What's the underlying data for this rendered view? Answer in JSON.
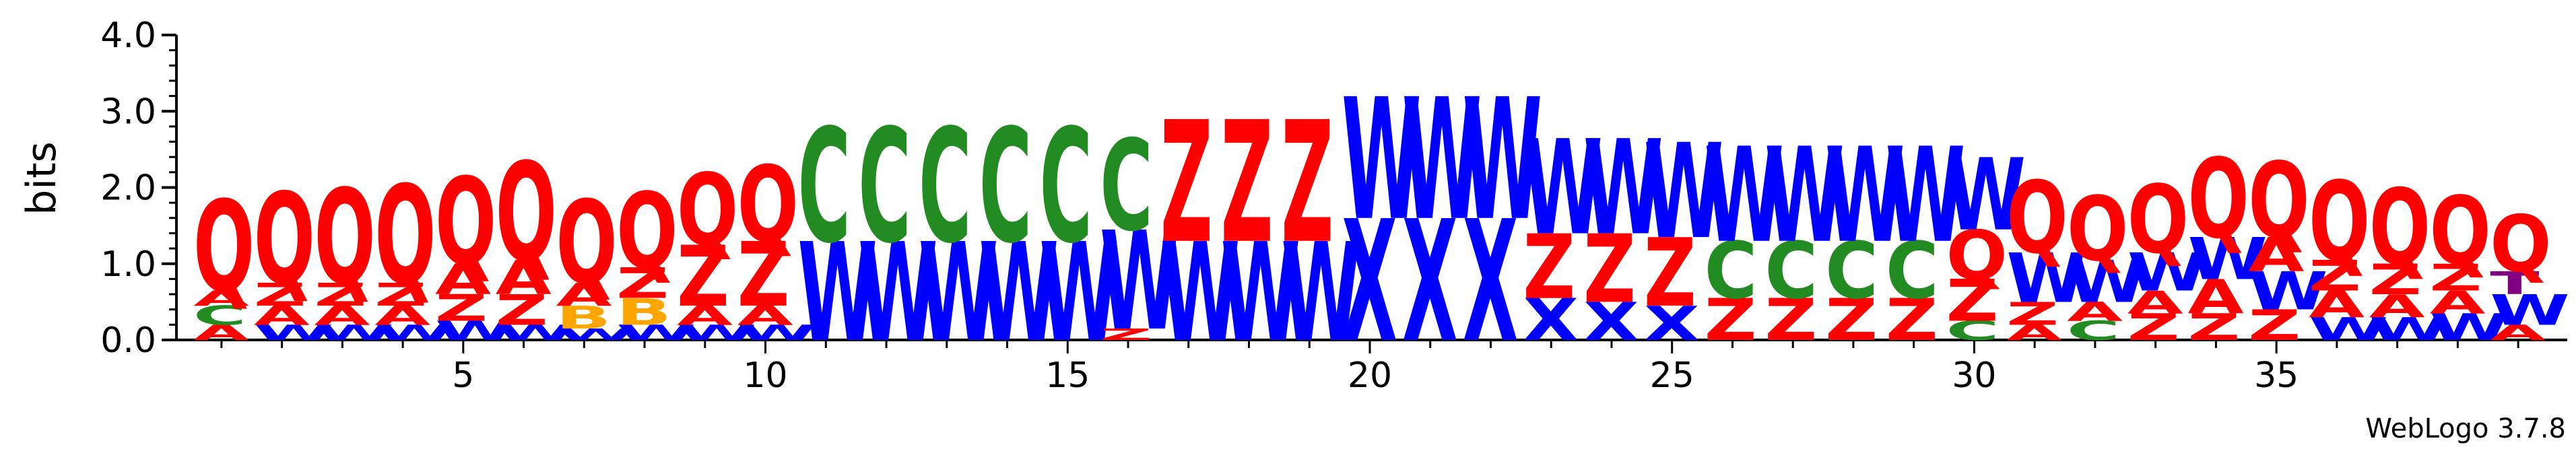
{
  "chart_data": {
    "type": "sequence-logo",
    "ylabel": "bits",
    "ylim": [
      0,
      4.0
    ],
    "yticks": [
      "0.0",
      "1.0",
      "2.0",
      "3.0",
      "4.0"
    ],
    "xticks": [
      5,
      10,
      15,
      20,
      25,
      30,
      35
    ],
    "footer": "WebLogo 3.7.8",
    "colors": {
      "Q": "#ff0000",
      "Z": "#ff0000",
      "A": "#ff0000",
      "C": "#228b22",
      "W": "#0000ff",
      "X": "#0000ff",
      "B": "#ffa500",
      "T": "#800080"
    },
    "positions": [
      {
        "pos": 1,
        "stack": [
          [
            "A",
            0.2
          ],
          [
            "C",
            0.25
          ],
          [
            "A",
            0.2
          ],
          [
            "Q",
            1.2
          ]
        ]
      },
      {
        "pos": 2,
        "stack": [
          [
            "W",
            0.2
          ],
          [
            "A",
            0.25
          ],
          [
            "Z",
            0.3
          ],
          [
            "Q",
            1.2
          ]
        ]
      },
      {
        "pos": 3,
        "stack": [
          [
            "W",
            0.2
          ],
          [
            "A",
            0.25
          ],
          [
            "Z",
            0.3
          ],
          [
            "Q",
            1.25
          ]
        ]
      },
      {
        "pos": 4,
        "stack": [
          [
            "W",
            0.2
          ],
          [
            "A",
            0.25
          ],
          [
            "Z",
            0.3
          ],
          [
            "Q",
            1.3
          ]
        ]
      },
      {
        "pos": 5,
        "stack": [
          [
            "W",
            0.25
          ],
          [
            "Z",
            0.35
          ],
          [
            "A",
            0.4
          ],
          [
            "Q",
            1.15
          ]
        ]
      },
      {
        "pos": 6,
        "stack": [
          [
            "W",
            0.2
          ],
          [
            "Z",
            0.4
          ],
          [
            "A",
            0.45
          ],
          [
            "Q",
            1.3
          ]
        ]
      },
      {
        "pos": 7,
        "stack": [
          [
            "W",
            0.15
          ],
          [
            "B",
            0.3
          ],
          [
            "A",
            0.3
          ],
          [
            "Q",
            1.1
          ]
        ]
      },
      {
        "pos": 8,
        "stack": [
          [
            "W",
            0.2
          ],
          [
            "B",
            0.35
          ],
          [
            "Z",
            0.4
          ],
          [
            "Q",
            1.0
          ]
        ]
      },
      {
        "pos": 9,
        "stack": [
          [
            "W",
            0.2
          ],
          [
            "A",
            0.25
          ],
          [
            "Z",
            0.8
          ],
          [
            "Q",
            0.95
          ]
        ]
      },
      {
        "pos": 10,
        "stack": [
          [
            "W",
            0.2
          ],
          [
            "A",
            0.25
          ],
          [
            "Z",
            0.85
          ],
          [
            "Q",
            1.0
          ]
        ]
      },
      {
        "pos": 11,
        "stack": [
          [
            "W",
            1.3
          ],
          [
            "C",
            1.5
          ]
        ]
      },
      {
        "pos": 12,
        "stack": [
          [
            "W",
            1.3
          ],
          [
            "C",
            1.5
          ]
        ]
      },
      {
        "pos": 13,
        "stack": [
          [
            "W",
            1.3
          ],
          [
            "C",
            1.5
          ]
        ]
      },
      {
        "pos": 14,
        "stack": [
          [
            "W",
            1.3
          ],
          [
            "C",
            1.5
          ]
        ]
      },
      {
        "pos": 15,
        "stack": [
          [
            "W",
            1.3
          ],
          [
            "C",
            1.5
          ]
        ]
      },
      {
        "pos": 16,
        "stack": [
          [
            "Z",
            0.15
          ],
          [
            "W",
            1.3
          ],
          [
            "C",
            1.2
          ]
        ]
      },
      {
        "pos": 17,
        "stack": [
          [
            "W",
            1.3
          ],
          [
            "Z",
            1.6
          ]
        ]
      },
      {
        "pos": 18,
        "stack": [
          [
            "W",
            1.3
          ],
          [
            "Z",
            1.6
          ]
        ]
      },
      {
        "pos": 19,
        "stack": [
          [
            "W",
            1.3
          ],
          [
            "Z",
            1.6
          ]
        ]
      },
      {
        "pos": 20,
        "stack": [
          [
            "X",
            1.6
          ],
          [
            "W",
            1.6
          ]
        ]
      },
      {
        "pos": 21,
        "stack": [
          [
            "X",
            1.6
          ],
          [
            "W",
            1.6
          ]
        ]
      },
      {
        "pos": 22,
        "stack": [
          [
            "X",
            1.6
          ],
          [
            "W",
            1.6
          ]
        ]
      },
      {
        "pos": 23,
        "stack": [
          [
            "X",
            0.55
          ],
          [
            "Z",
            0.85
          ],
          [
            "W",
            1.25
          ]
        ]
      },
      {
        "pos": 24,
        "stack": [
          [
            "X",
            0.5
          ],
          [
            "Z",
            0.9
          ],
          [
            "W",
            1.25
          ]
        ]
      },
      {
        "pos": 25,
        "stack": [
          [
            "X",
            0.45
          ],
          [
            "Z",
            0.9
          ],
          [
            "W",
            1.25
          ]
        ]
      },
      {
        "pos": 26,
        "stack": [
          [
            "Z",
            0.55
          ],
          [
            "C",
            0.75
          ],
          [
            "W",
            1.25
          ]
        ]
      },
      {
        "pos": 27,
        "stack": [
          [
            "Z",
            0.55
          ],
          [
            "C",
            0.75
          ],
          [
            "W",
            1.25
          ]
        ]
      },
      {
        "pos": 28,
        "stack": [
          [
            "Z",
            0.55
          ],
          [
            "C",
            0.75
          ],
          [
            "W",
            1.25
          ]
        ]
      },
      {
        "pos": 29,
        "stack": [
          [
            "Z",
            0.55
          ],
          [
            "C",
            0.75
          ],
          [
            "W",
            1.25
          ]
        ]
      },
      {
        "pos": 30,
        "stack": [
          [
            "C",
            0.25
          ],
          [
            "Z",
            0.55
          ],
          [
            "Q",
            0.65
          ],
          [
            "W",
            0.95
          ]
        ]
      },
      {
        "pos": 31,
        "stack": [
          [
            "A",
            0.2
          ],
          [
            "Z",
            0.3
          ],
          [
            "W",
            0.65
          ],
          [
            "Q",
            0.95
          ]
        ]
      },
      {
        "pos": 32,
        "stack": [
          [
            "C",
            0.25
          ],
          [
            "A",
            0.25
          ],
          [
            "W",
            0.55
          ],
          [
            "Q",
            0.85
          ]
        ]
      },
      {
        "pos": 33,
        "stack": [
          [
            "Z",
            0.35
          ],
          [
            "A",
            0.3
          ],
          [
            "W",
            0.5
          ],
          [
            "Q",
            0.9
          ]
        ]
      },
      {
        "pos": 34,
        "stack": [
          [
            "Z",
            0.35
          ],
          [
            "A",
            0.45
          ],
          [
            "W",
            0.55
          ],
          [
            "Q",
            1.05
          ]
        ]
      },
      {
        "pos": 35,
        "stack": [
          [
            "Z",
            0.4
          ],
          [
            "W",
            0.5
          ],
          [
            "A",
            0.45
          ],
          [
            "Q",
            1.0
          ]
        ]
      },
      {
        "pos": 36,
        "stack": [
          [
            "W",
            0.3
          ],
          [
            "A",
            0.35
          ],
          [
            "Z",
            0.4
          ],
          [
            "Q",
            1.05
          ]
        ]
      },
      {
        "pos": 37,
        "stack": [
          [
            "W",
            0.3
          ],
          [
            "A",
            0.3
          ],
          [
            "Z",
            0.4
          ],
          [
            "Q",
            1.0
          ]
        ]
      },
      {
        "pos": 38,
        "stack": [
          [
            "W",
            0.35
          ],
          [
            "A",
            0.3
          ],
          [
            "Z",
            0.35
          ],
          [
            "Q",
            0.9
          ]
        ]
      },
      {
        "pos": 39,
        "stack": [
          [
            "A",
            0.2
          ],
          [
            "W",
            0.4
          ],
          [
            "T",
            0.3
          ],
          [
            "Q",
            0.75
          ]
        ]
      }
    ]
  }
}
